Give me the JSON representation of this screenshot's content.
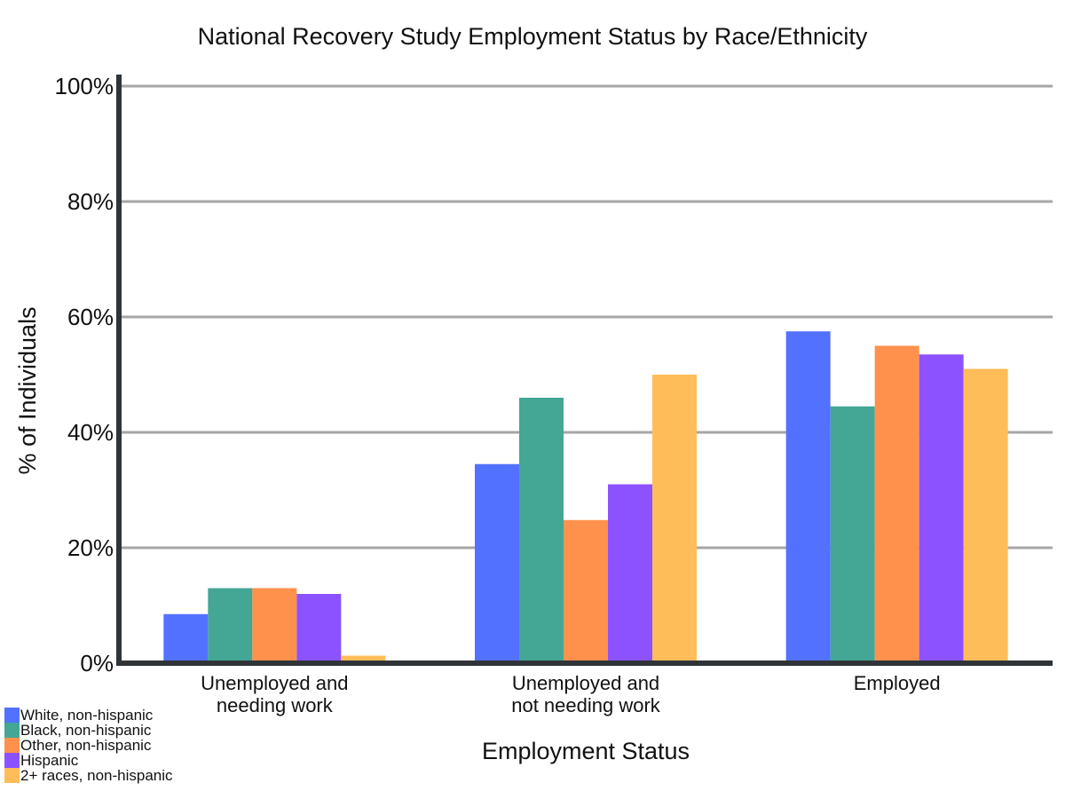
{
  "chart_data": {
    "type": "bar",
    "title": "National Recovery Study Employment Status by Race/Ethnicity",
    "xlabel": "Employment Status",
    "ylabel": "% of Individuals",
    "ylim": [
      0,
      100
    ],
    "yticks": [
      "0%",
      "20%",
      "40%",
      "60%",
      "80%",
      "100%"
    ],
    "ytick_values": [
      0,
      20,
      40,
      60,
      80,
      100
    ],
    "grid": true,
    "legend_position": "bottom-left",
    "categories": [
      [
        "Unemployed and",
        "needing work"
      ],
      [
        "Unemployed and",
        "not needing work"
      ],
      [
        "Employed"
      ]
    ],
    "series": [
      {
        "name": "White, non-hispanic",
        "color": "#5271ff",
        "values": [
          8.5,
          34.5,
          57.5
        ]
      },
      {
        "name": "Black, non-hispanic",
        "color": "#44a695",
        "values": [
          13,
          46,
          44.5
        ]
      },
      {
        "name": "Other, non-hispanic",
        "color": "#ff914d",
        "values": [
          13,
          24.8,
          55
        ]
      },
      {
        "name": "Hispanic",
        "color": "#8c52ff",
        "values": [
          12,
          31,
          53.5
        ]
      },
      {
        "name": "2+ races, non-hispanic",
        "color": "#ffbd59",
        "values": [
          1.3,
          50,
          51
        ]
      }
    ]
  }
}
